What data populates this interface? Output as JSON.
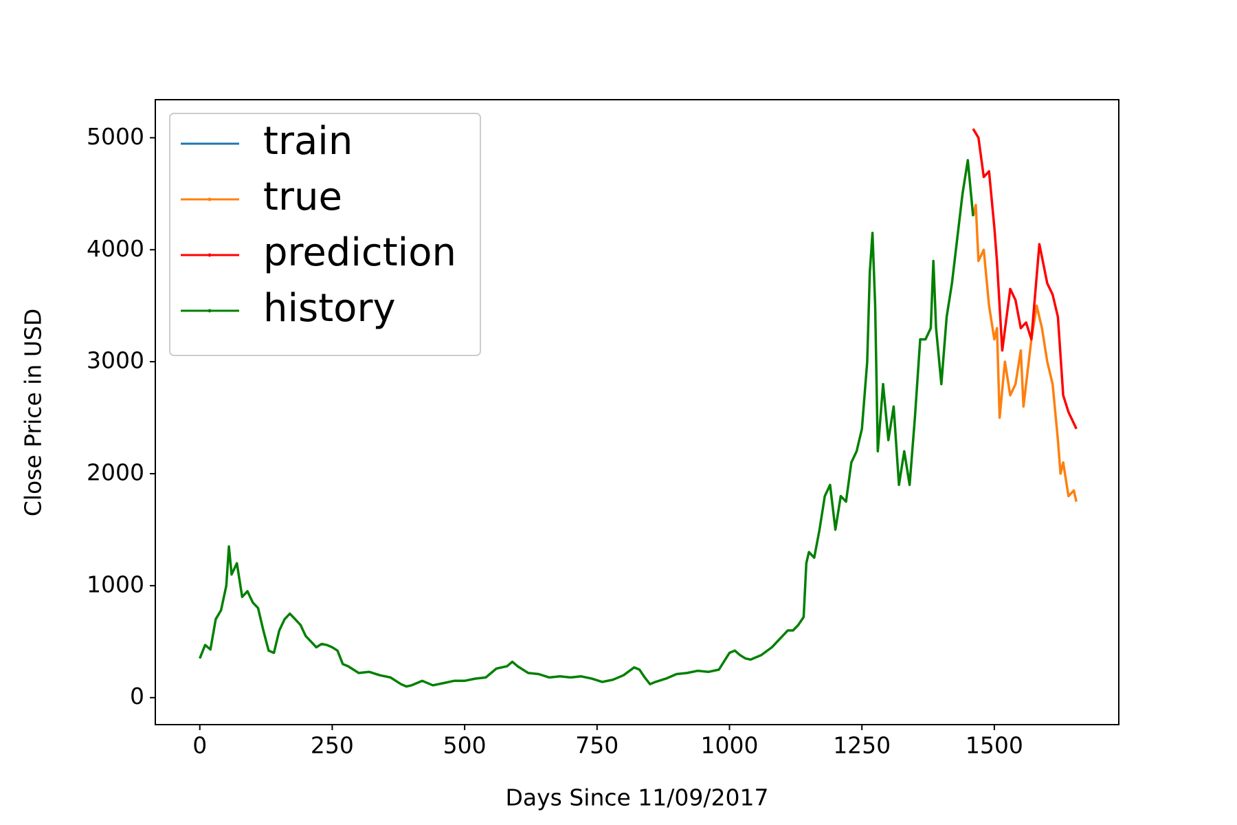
{
  "chart_data": {
    "type": "line",
    "xlabel": "Days Since 11/09/2017",
    "ylabel": "Close Price in USD",
    "xlim": [
      -84,
      1735
    ],
    "ylim": [
      -241,
      5340
    ],
    "xticks": [
      0,
      250,
      500,
      750,
      1000,
      1250,
      1500
    ],
    "yticks": [
      0,
      1000,
      2000,
      3000,
      4000,
      5000
    ],
    "legend": "upper left",
    "series": [
      {
        "name": "train",
        "color": "#1f77b4",
        "x": [],
        "values": []
      },
      {
        "name": "true",
        "color": "#ff7f0e",
        "x": [
          1460,
          1465,
          1470,
          1480,
          1490,
          1500,
          1505,
          1510,
          1520,
          1530,
          1540,
          1550,
          1555,
          1560,
          1570,
          1580,
          1590,
          1600,
          1610,
          1620,
          1625,
          1630,
          1640,
          1650,
          1655
        ],
        "values": [
          4300,
          4400,
          3900,
          4000,
          3500,
          3200,
          3300,
          2500,
          3000,
          2700,
          2800,
          3100,
          2600,
          2800,
          3200,
          3500,
          3300,
          3000,
          2800,
          2300,
          2000,
          2100,
          1800,
          1850,
          1750
        ]
      },
      {
        "name": "prediction",
        "color": "#ff0000",
        "x": [
          1460,
          1470,
          1480,
          1490,
          1500,
          1505,
          1515,
          1530,
          1540,
          1550,
          1560,
          1570,
          1585,
          1600,
          1610,
          1620,
          1630,
          1640,
          1655
        ],
        "values": [
          5080,
          5000,
          4650,
          4700,
          4200,
          3900,
          3100,
          3650,
          3550,
          3300,
          3350,
          3200,
          4050,
          3700,
          3600,
          3400,
          2700,
          2550,
          2400
        ]
      },
      {
        "name": "history",
        "color": "#008000",
        "x": [
          0,
          10,
          20,
          30,
          40,
          50,
          55,
          60,
          70,
          80,
          90,
          100,
          110,
          120,
          130,
          140,
          150,
          160,
          170,
          180,
          190,
          200,
          210,
          220,
          230,
          240,
          250,
          260,
          270,
          280,
          290,
          300,
          320,
          340,
          360,
          380,
          390,
          400,
          420,
          440,
          460,
          480,
          500,
          520,
          540,
          560,
          580,
          590,
          600,
          620,
          640,
          660,
          680,
          700,
          720,
          740,
          760,
          780,
          800,
          820,
          830,
          840,
          850,
          860,
          880,
          900,
          920,
          940,
          960,
          980,
          1000,
          1010,
          1020,
          1030,
          1040,
          1060,
          1080,
          1100,
          1110,
          1120,
          1130,
          1140,
          1145,
          1150,
          1160,
          1170,
          1180,
          1190,
          1200,
          1210,
          1220,
          1230,
          1240,
          1250,
          1260,
          1265,
          1270,
          1275,
          1280,
          1290,
          1300,
          1310,
          1320,
          1330,
          1340,
          1350,
          1360,
          1370,
          1380,
          1385,
          1390,
          1400,
          1410,
          1420,
          1430,
          1440,
          1450,
          1460
        ],
        "values": [
          350,
          470,
          430,
          700,
          780,
          1000,
          1350,
          1100,
          1200,
          900,
          950,
          850,
          800,
          600,
          420,
          400,
          600,
          700,
          750,
          700,
          650,
          550,
          500,
          450,
          480,
          470,
          450,
          420,
          300,
          280,
          250,
          220,
          230,
          200,
          180,
          120,
          100,
          110,
          150,
          110,
          130,
          150,
          150,
          170,
          180,
          260,
          280,
          320,
          280,
          220,
          210,
          180,
          190,
          180,
          190,
          170,
          140,
          160,
          200,
          270,
          250,
          180,
          120,
          140,
          170,
          210,
          220,
          240,
          230,
          250,
          400,
          420,
          380,
          350,
          340,
          380,
          450,
          550,
          600,
          600,
          650,
          720,
          1200,
          1300,
          1250,
          1500,
          1800,
          1900,
          1500,
          1800,
          1750,
          2100,
          2200,
          2400,
          3000,
          3800,
          4150,
          3500,
          2200,
          2800,
          2300,
          2600,
          1900,
          2200,
          1900,
          2500,
          3200,
          3200,
          3300,
          3900,
          3300,
          2800,
          3400,
          3700,
          4100,
          4500,
          4800,
          4300
        ]
      }
    ]
  }
}
